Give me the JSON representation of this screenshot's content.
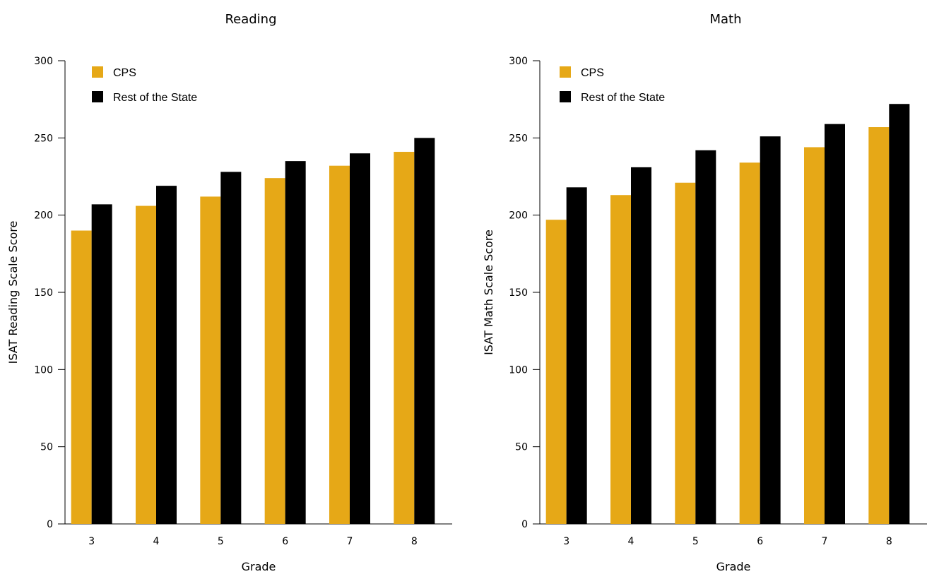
{
  "chart_data": [
    {
      "type": "bar",
      "title": "Reading",
      "xlabel": "Grade",
      "ylabel": "ISAT Reading Scale Score",
      "categories": [
        "3",
        "4",
        "5",
        "6",
        "7",
        "8"
      ],
      "ylim": [
        0,
        300
      ],
      "yticks": [
        "0",
        "50",
        "100",
        "150",
        "200",
        "250",
        "300"
      ],
      "legend_position": "top-left",
      "grid": false,
      "series": [
        {
          "name": "CPS",
          "color": "#E6A817",
          "values": [
            190,
            206,
            212,
            224,
            232,
            241
          ]
        },
        {
          "name": "Rest of the State",
          "color": "#000000",
          "values": [
            207,
            219,
            228,
            235,
            240,
            250
          ]
        }
      ]
    },
    {
      "type": "bar",
      "title": "Math",
      "xlabel": "Grade",
      "ylabel": "ISAT Math Scale Score",
      "categories": [
        "3",
        "4",
        "5",
        "6",
        "7",
        "8"
      ],
      "ylim": [
        0,
        300
      ],
      "yticks": [
        "0",
        "50",
        "100",
        "150",
        "200",
        "250",
        "300"
      ],
      "legend_position": "top-left",
      "grid": false,
      "series": [
        {
          "name": "CPS",
          "color": "#E6A817",
          "values": [
            197,
            213,
            221,
            234,
            244,
            257
          ]
        },
        {
          "name": "Rest of the State",
          "color": "#000000",
          "values": [
            218,
            231,
            242,
            251,
            259,
            272
          ]
        }
      ]
    }
  ]
}
